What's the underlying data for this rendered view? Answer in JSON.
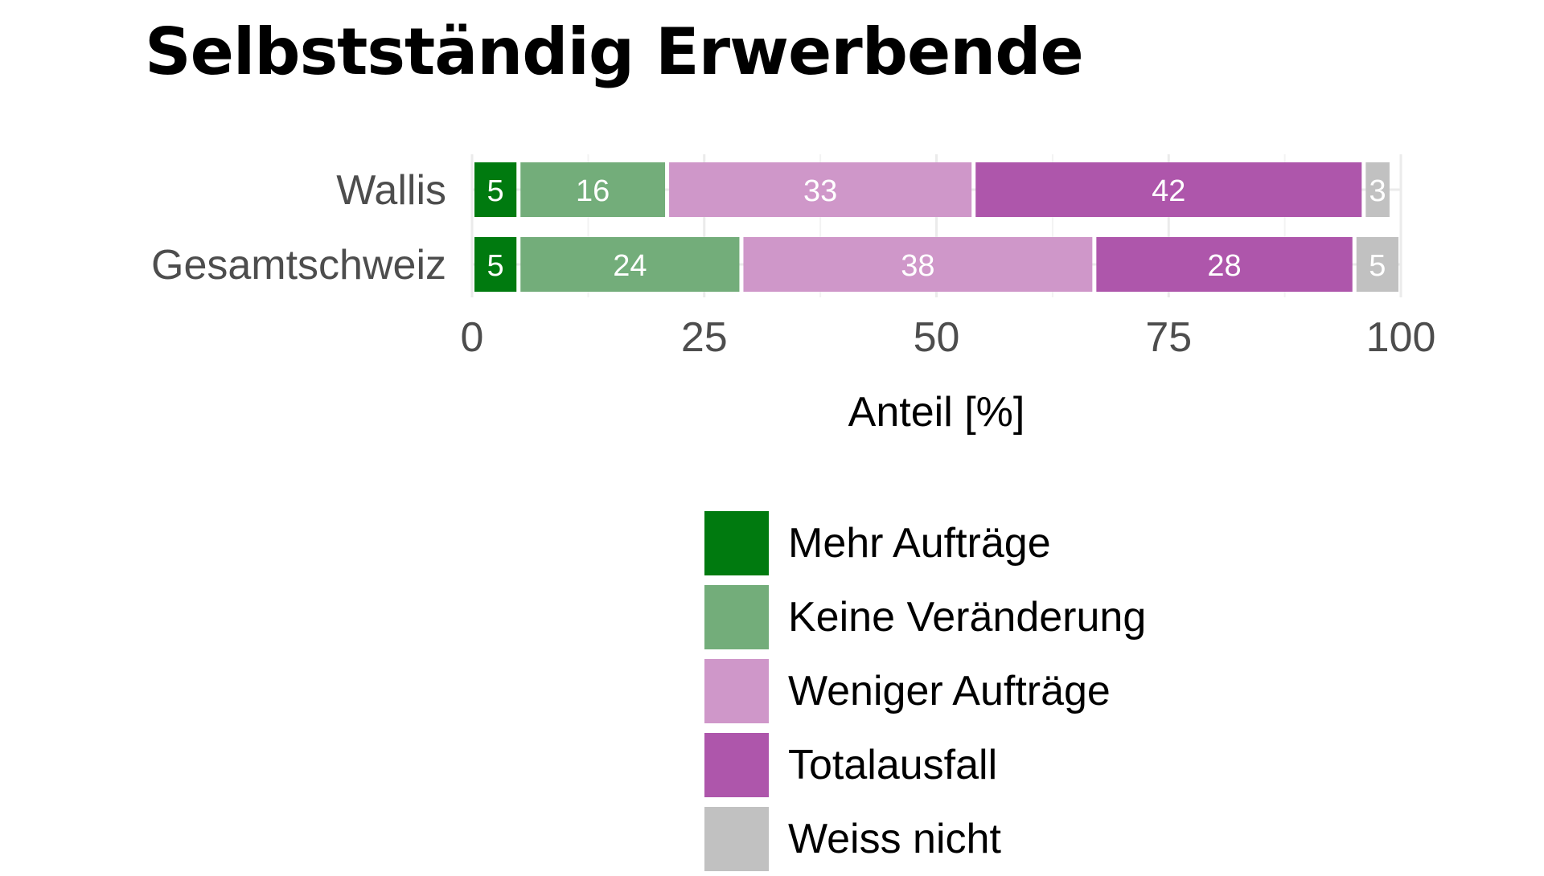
{
  "chart_data": {
    "type": "bar",
    "orientation": "horizontal",
    "stacked": true,
    "title": "Selbstständig Erwerbende",
    "xlabel": "Anteil [%]",
    "ylabel": "",
    "xlim": [
      0,
      100
    ],
    "x_ticks": [
      "0",
      "25",
      "50",
      "75",
      "100"
    ],
    "categories": [
      "Wallis",
      "Gesamtschweiz"
    ],
    "series": [
      {
        "name": "Mehr Aufträge",
        "color": "#007a0f",
        "values": [
          5,
          5
        ]
      },
      {
        "name": "Keine Veränderung",
        "color": "#73ad7a",
        "values": [
          16,
          24
        ]
      },
      {
        "name": "Weniger Aufträge",
        "color": "#cf97c9",
        "values": [
          33,
          38
        ]
      },
      {
        "name": "Totalausfall",
        "color": "#ae56ab",
        "values": [
          42,
          28
        ]
      },
      {
        "name": "Weiss nicht",
        "color": "#c1c1c1",
        "values": [
          3,
          5
        ]
      }
    ],
    "grid": true,
    "legend_position": "bottom"
  }
}
